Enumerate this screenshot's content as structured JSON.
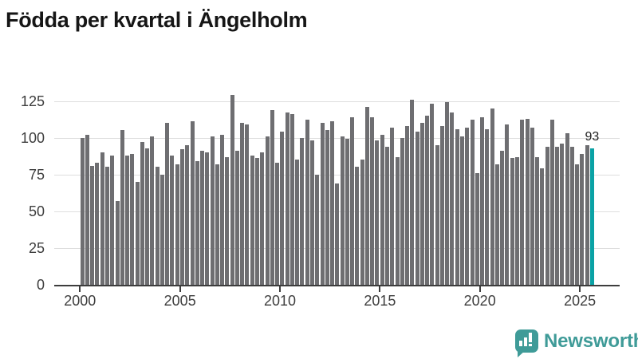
{
  "title": "Födda per kvartal i Ängelholm",
  "chart_data": {
    "type": "bar",
    "title": "Födda per kvartal i Ängelholm",
    "xlabel": "",
    "ylabel": "",
    "ylim": [
      0,
      125
    ],
    "yticks": [
      0,
      25,
      50,
      75,
      100,
      125
    ],
    "xticks": [
      "2000",
      "2005",
      "2010",
      "2015",
      "2020",
      "2025"
    ],
    "grid": "horizontal",
    "legend": "none",
    "bar_color": "#6e6e71",
    "highlight_color": "#0aa2a5",
    "highlight_index": 102,
    "last_value_label": "93",
    "categories": [
      "2000Q1",
      "2000Q2",
      "2000Q3",
      "2000Q4",
      "2001Q1",
      "2001Q2",
      "2001Q3",
      "2001Q4",
      "2002Q1",
      "2002Q2",
      "2002Q3",
      "2002Q4",
      "2003Q1",
      "2003Q2",
      "2003Q3",
      "2003Q4",
      "2004Q1",
      "2004Q2",
      "2004Q3",
      "2004Q4",
      "2005Q1",
      "2005Q2",
      "2005Q3",
      "2005Q4",
      "2006Q1",
      "2006Q2",
      "2006Q3",
      "2006Q4",
      "2007Q1",
      "2007Q2",
      "2007Q3",
      "2007Q4",
      "2008Q1",
      "2008Q2",
      "2008Q3",
      "2008Q4",
      "2009Q1",
      "2009Q2",
      "2009Q3",
      "2009Q4",
      "2010Q1",
      "2010Q2",
      "2010Q3",
      "2010Q4",
      "2011Q1",
      "2011Q2",
      "2011Q3",
      "2011Q4",
      "2012Q1",
      "2012Q2",
      "2012Q3",
      "2012Q4",
      "2013Q1",
      "2013Q2",
      "2013Q3",
      "2013Q4",
      "2014Q1",
      "2014Q2",
      "2014Q3",
      "2014Q4",
      "2015Q1",
      "2015Q2",
      "2015Q3",
      "2015Q4",
      "2016Q1",
      "2016Q2",
      "2016Q3",
      "2016Q4",
      "2017Q1",
      "2017Q2",
      "2017Q3",
      "2017Q4",
      "2018Q1",
      "2018Q2",
      "2018Q3",
      "2018Q4",
      "2019Q1",
      "2019Q2",
      "2019Q3",
      "2019Q4",
      "2020Q1",
      "2020Q2",
      "2020Q3",
      "2020Q4",
      "2021Q1",
      "2021Q2",
      "2021Q3",
      "2021Q4",
      "2022Q1",
      "2022Q2",
      "2022Q3",
      "2022Q4",
      "2023Q1",
      "2023Q2",
      "2023Q3",
      "2023Q4",
      "2024Q1",
      "2024Q2",
      "2024Q3",
      "2024Q4",
      "2025Q1",
      "2025Q2",
      "2025Q3"
    ],
    "values": [
      100,
      102,
      81,
      83,
      90,
      80,
      88,
      57,
      105,
      88,
      89,
      70,
      97,
      93,
      101,
      80,
      75,
      110,
      88,
      82,
      92,
      95,
      111,
      84,
      91,
      90,
      101,
      82,
      102,
      87,
      129,
      91,
      110,
      109,
      88,
      86,
      90,
      101,
      119,
      83,
      104,
      117,
      116,
      85,
      100,
      112,
      98,
      75,
      110,
      105,
      111,
      69,
      101,
      99,
      114,
      80,
      85,
      121,
      114,
      98,
      102,
      94,
      107,
      87,
      100,
      108,
      126,
      104,
      110,
      115,
      123,
      95,
      108,
      124,
      117,
      106,
      101,
      107,
      112,
      76,
      114,
      106,
      120,
      82,
      91,
      109,
      86,
      87,
      112,
      113,
      107,
      87,
      79,
      94,
      112,
      94,
      96,
      103,
      94,
      82,
      89,
      95,
      93
    ]
  },
  "watermark": {
    "text": "Newsworthy",
    "color": "#3f9b98"
  }
}
